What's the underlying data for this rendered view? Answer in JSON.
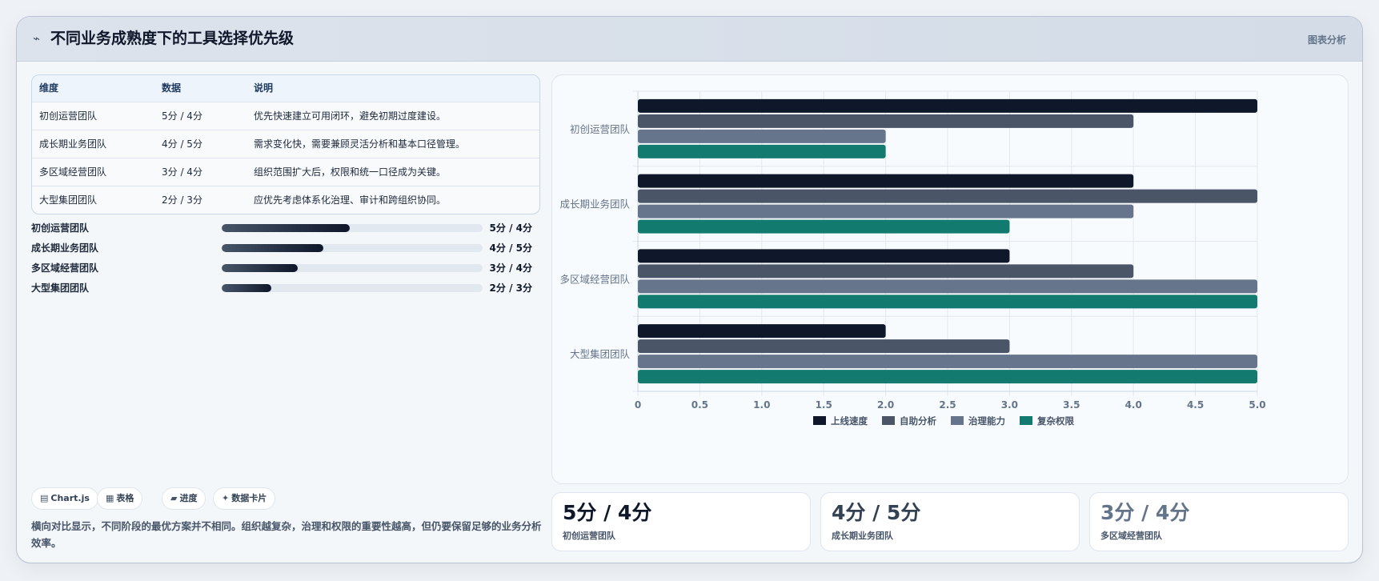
{
  "header": {
    "title": "不同业务成熟度下的工具选择优先级",
    "subtitle": "图表分析",
    "icon": "trend-icon"
  },
  "table": {
    "columns": [
      "维度",
      "数据",
      "说明"
    ],
    "rows": [
      {
        "dim": "初创运营团队",
        "data": "5分 / 4分",
        "desc": "优先快速建立可用闭环，避免初期过度建设。"
      },
      {
        "dim": "成长期业务团队",
        "data": "4分 / 5分",
        "desc": "需求变化快，需要兼顾灵活分析和基本口径管理。"
      },
      {
        "dim": "多区域经营团队",
        "data": "3分 / 4分",
        "desc": "组织范围扩大后，权限和统一口径成为关键。"
      },
      {
        "dim": "大型集团团队",
        "data": "2分 / 3分",
        "desc": "应优先考虑体系化治理、审计和跨组织协同。"
      }
    ]
  },
  "progress": [
    {
      "label": "初创运营团队",
      "value": "5分 / 4分",
      "fraction": 0.49
    },
    {
      "label": "成长期业务团队",
      "value": "4分 / 5分",
      "fraction": 0.39
    },
    {
      "label": "多区域经营团队",
      "value": "3分 / 4分",
      "fraction": 0.29
    },
    {
      "label": "大型集团团队",
      "value": "2分 / 3分",
      "fraction": 0.19
    }
  ],
  "chips": [
    {
      "icon": "chart-icon",
      "glyph": "▤",
      "label": "Chart.js"
    },
    {
      "icon": "table-icon",
      "glyph": "▦",
      "label": "表格"
    },
    {
      "icon": "progress-icon",
      "glyph": "▰",
      "label": "进度"
    },
    {
      "icon": "card-icon",
      "glyph": "✦",
      "label": "数据卡片"
    }
  ],
  "note": "横向对比显示，不同阶段的最优方案并不相同。组织越复杂，治理和权限的重要性越高，但仍要保留足够的业务分析效率。",
  "stats": [
    {
      "value": "5分 / 4分",
      "label": "初创运营团队",
      "color": "#0f172a"
    },
    {
      "value": "4分 / 5分",
      "label": "成长期业务团队",
      "color": "#334155"
    },
    {
      "value": "3分 / 4分",
      "label": "多区域经营团队",
      "color": "#64748b"
    }
  ],
  "chart_data": {
    "type": "bar",
    "orientation": "horizontal",
    "categories": [
      "初创运营团队",
      "成长期业务团队",
      "多区域经营团队",
      "大型集团团队"
    ],
    "series": [
      {
        "name": "上线速度",
        "color": "#0f172a",
        "values": [
          5,
          4,
          3,
          2
        ]
      },
      {
        "name": "自助分析",
        "color": "#4b5568",
        "values": [
          4,
          5,
          4,
          3
        ]
      },
      {
        "name": "治理能力",
        "color": "#66758c",
        "values": [
          2,
          4,
          5,
          5
        ]
      },
      {
        "name": "复杂权限",
        "color": "#137a6f",
        "values": [
          2,
          3,
          5,
          5
        ]
      }
    ],
    "xlim": [
      0,
      5
    ],
    "xticks": [
      "0",
      "0.5",
      "1.0",
      "1.5",
      "2.0",
      "2.5",
      "3.0",
      "3.5",
      "4.0",
      "4.5",
      "5.0"
    ],
    "grid": true,
    "legend": "bottom"
  }
}
